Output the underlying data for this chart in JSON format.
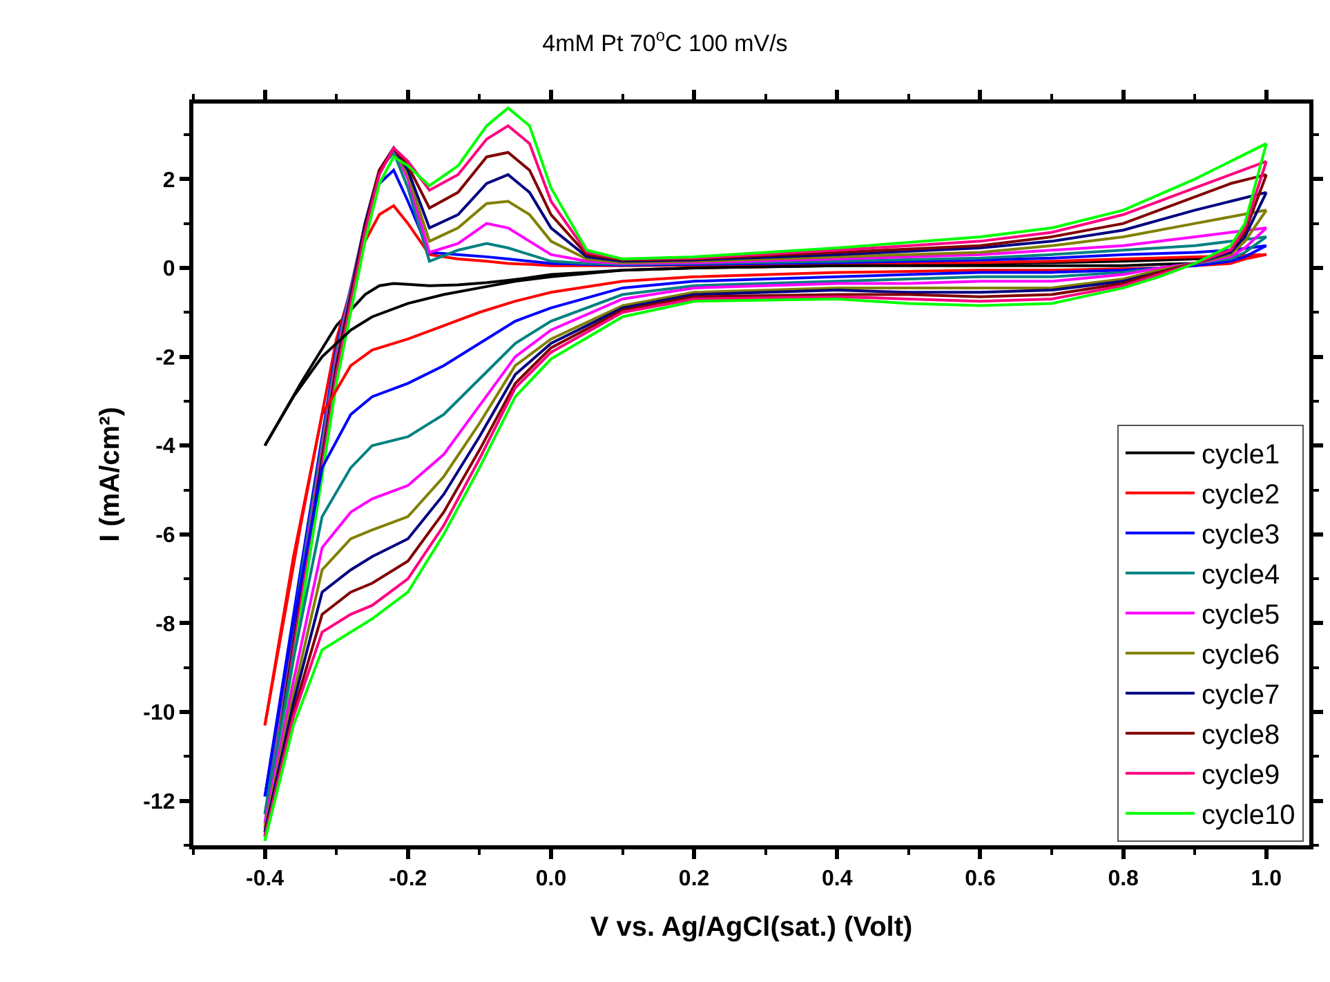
{
  "chart_data": {
    "type": "line",
    "title": "4mM Pt 70$^{o}$C 100 mV/s",
    "xlabel": "V vs. Ag/AgCl(sat.) (Volt)",
    "ylabel": "I (mA/cm²)",
    "x": [
      -0.4,
      -0.35,
      -0.3,
      -0.26,
      -0.24,
      -0.22,
      -0.2,
      -0.17,
      -0.13,
      -0.09,
      -0.06,
      -0.03,
      0,
      0.05,
      0.1,
      0.2,
      0.4,
      0.6,
      0.7,
      0.8,
      0.9,
      0.95,
      1.0
    ],
    "series": [
      {
        "name": "cycle1",
        "color": "#000000",
        "values": [
          -4.0,
          -2.6,
          -1.3,
          -0.6,
          -0.4,
          -0.35,
          -0.37,
          -0.4,
          -0.38,
          -0.33,
          -0.28,
          -0.22,
          -0.15,
          -0.1,
          -0.05,
          0,
          0.05,
          0.1,
          0.12,
          0.15,
          0.2,
          0.25,
          0.3
        ]
      },
      {
        "name": "cycle2",
        "color": "#ff0000",
        "values": [
          -10.3,
          -5.8,
          -1.6,
          0.6,
          1.2,
          1.4,
          1.0,
          0.3,
          0.2,
          0.15,
          0.1,
          0.08,
          0.05,
          0.05,
          0.05,
          0.06,
          0.1,
          0.12,
          0.15,
          0.2,
          0.25,
          0.27,
          0.3
        ]
      },
      {
        "name": "cycle3",
        "color": "#0000ff",
        "values": [
          -11.9,
          -6.8,
          -1.8,
          0.9,
          1.9,
          2.2,
          1.5,
          0.35,
          0.3,
          0.25,
          0.2,
          0.15,
          0.1,
          0.08,
          0.06,
          0.08,
          0.12,
          0.18,
          0.22,
          0.3,
          0.35,
          0.4,
          0.5
        ]
      },
      {
        "name": "cycle4",
        "color": "#008080",
        "values": [
          -12.3,
          -7.0,
          -1.9,
          1.0,
          2.2,
          2.6,
          1.8,
          0.15,
          0.4,
          0.55,
          0.45,
          0.3,
          0.15,
          0.1,
          0.08,
          0.1,
          0.15,
          0.22,
          0.3,
          0.4,
          0.5,
          0.6,
          0.7
        ]
      },
      {
        "name": "cycle5",
        "color": "#ff00ff",
        "values": [
          -12.5,
          -7.2,
          -2.0,
          1.0,
          2.2,
          2.7,
          2.0,
          0.35,
          0.55,
          1.0,
          0.9,
          0.6,
          0.3,
          0.15,
          0.1,
          0.12,
          0.2,
          0.3,
          0.4,
          0.5,
          0.7,
          0.8,
          0.9
        ]
      },
      {
        "name": "cycle6",
        "color": "#808000",
        "values": [
          -12.6,
          -7.3,
          -2.1,
          1.0,
          2.2,
          2.7,
          2.1,
          0.6,
          0.9,
          1.45,
          1.5,
          1.2,
          0.6,
          0.2,
          0.12,
          0.15,
          0.25,
          0.35,
          0.5,
          0.7,
          1.0,
          1.15,
          1.3
        ]
      },
      {
        "name": "cycle7",
        "color": "#000080",
        "values": [
          -12.7,
          -7.4,
          -2.2,
          1.0,
          2.2,
          2.7,
          2.2,
          0.9,
          1.2,
          1.9,
          2.1,
          1.7,
          0.9,
          0.25,
          0.15,
          0.18,
          0.3,
          0.45,
          0.6,
          0.85,
          1.3,
          1.5,
          1.7
        ]
      },
      {
        "name": "cycle8",
        "color": "#800000",
        "values": [
          -12.8,
          -7.5,
          -2.3,
          0.9,
          2.2,
          2.7,
          2.3,
          1.35,
          1.7,
          2.5,
          2.6,
          2.2,
          1.2,
          0.3,
          0.18,
          0.2,
          0.35,
          0.5,
          0.7,
          1.0,
          1.6,
          1.9,
          2.1
        ]
      },
      {
        "name": "cycle9",
        "color": "#ff0080",
        "values": [
          -12.8,
          -7.6,
          -2.4,
          0.8,
          2.1,
          2.7,
          2.4,
          1.75,
          2.1,
          2.9,
          3.2,
          2.8,
          1.5,
          0.35,
          0.2,
          0.22,
          0.4,
          0.6,
          0.8,
          1.2,
          1.8,
          2.1,
          2.4
        ]
      },
      {
        "name": "cycle10",
        "color": "#00ff00",
        "values": [
          -12.9,
          -7.8,
          -2.6,
          0.6,
          1.9,
          2.5,
          2.3,
          1.85,
          2.3,
          3.2,
          3.6,
          3.2,
          1.8,
          0.4,
          0.2,
          0.25,
          0.45,
          0.7,
          0.9,
          1.3,
          2.0,
          2.4,
          2.8
        ]
      },
      {
        "color": "#000000",
        "x": [
          -0.4,
          -0.36,
          -0.32,
          -0.28,
          -0.25,
          -0.2,
          -0.15,
          -0.1,
          -0.05,
          0,
          0.1,
          0.2,
          0.4,
          0.5,
          0.6,
          0.7,
          0.8,
          0.85,
          0.9,
          0.95,
          0.97
        ],
        "values": [
          -4.0,
          -2.9,
          -2.0,
          -1.4,
          -1.1,
          -0.8,
          -0.6,
          -0.45,
          -0.3,
          -0.2,
          -0.05,
          0,
          0.05,
          0.05,
          0.05,
          0.05,
          0.05,
          0.08,
          0.1,
          0.15,
          0.2
        ]
      },
      {
        "color": "#ff0000",
        "x": [
          -0.4,
          -0.36,
          -0.32,
          -0.28,
          -0.25,
          -0.2,
          -0.15,
          -0.1,
          -0.05,
          0,
          0.1,
          0.2,
          0.4,
          0.5,
          0.6,
          0.7,
          0.8,
          0.85,
          0.9,
          0.95,
          0.97,
          1.0
        ],
        "values": [
          -10.3,
          -6.5,
          -3.3,
          -2.2,
          -1.85,
          -1.6,
          -1.3,
          -1.0,
          -0.75,
          -0.55,
          -0.3,
          -0.2,
          -0.1,
          -0.08,
          -0.05,
          -0.05,
          -0.02,
          0,
          0.05,
          0.1,
          0.2,
          0.3
        ]
      },
      {
        "color": "#0000ff",
        "x": [
          -0.4,
          -0.36,
          -0.32,
          -0.28,
          -0.25,
          -0.2,
          -0.15,
          -0.1,
          -0.05,
          0,
          0.1,
          0.2,
          0.4,
          0.5,
          0.6,
          0.7,
          0.8,
          0.85,
          0.9,
          0.95,
          0.97,
          1.0
        ],
        "values": [
          -11.9,
          -8.0,
          -4.5,
          -3.3,
          -2.9,
          -2.6,
          -2.2,
          -1.7,
          -1.2,
          -0.9,
          -0.45,
          -0.3,
          -0.2,
          -0.15,
          -0.1,
          -0.1,
          -0.05,
          0,
          0.05,
          0.15,
          0.25,
          0.5
        ]
      },
      {
        "color": "#008080",
        "x": [
          -0.4,
          -0.36,
          -0.32,
          -0.28,
          -0.25,
          -0.2,
          -0.15,
          -0.1,
          -0.05,
          0,
          0.1,
          0.2,
          0.4,
          0.5,
          0.6,
          0.7,
          0.8,
          0.85,
          0.9,
          0.95,
          0.97,
          1.0
        ],
        "values": [
          -12.3,
          -8.8,
          -5.6,
          -4.5,
          -4.0,
          -3.8,
          -3.3,
          -2.5,
          -1.7,
          -1.2,
          -0.6,
          -0.4,
          -0.3,
          -0.25,
          -0.2,
          -0.2,
          -0.1,
          0,
          0.1,
          0.2,
          0.35,
          0.7
        ]
      },
      {
        "color": "#ff00ff",
        "x": [
          -0.4,
          -0.36,
          -0.32,
          -0.28,
          -0.25,
          -0.2,
          -0.15,
          -0.1,
          -0.05,
          0,
          0.1,
          0.2,
          0.4,
          0.5,
          0.6,
          0.7,
          0.8,
          0.85,
          0.9,
          0.95,
          0.97,
          1.0
        ],
        "values": [
          -12.5,
          -9.3,
          -6.3,
          -5.5,
          -5.2,
          -4.9,
          -4.2,
          -3.1,
          -2.0,
          -1.4,
          -0.7,
          -0.45,
          -0.35,
          -0.35,
          -0.3,
          -0.3,
          -0.15,
          0,
          0.1,
          0.25,
          0.45,
          0.9
        ]
      },
      {
        "color": "#808000",
        "x": [
          -0.4,
          -0.36,
          -0.32,
          -0.28,
          -0.25,
          -0.2,
          -0.15,
          -0.1,
          -0.05,
          0,
          0.1,
          0.2,
          0.4,
          0.5,
          0.6,
          0.7,
          0.8,
          0.85,
          0.9,
          0.95,
          0.97,
          1.0
        ],
        "values": [
          -12.6,
          -9.6,
          -6.8,
          -6.1,
          -5.9,
          -5.6,
          -4.7,
          -3.5,
          -2.2,
          -1.6,
          -0.85,
          -0.55,
          -0.45,
          -0.45,
          -0.45,
          -0.45,
          -0.25,
          -0.05,
          0.1,
          0.3,
          0.6,
          1.3
        ]
      },
      {
        "color": "#000080",
        "x": [
          -0.4,
          -0.36,
          -0.32,
          -0.28,
          -0.25,
          -0.2,
          -0.15,
          -0.1,
          -0.05,
          0,
          0.1,
          0.2,
          0.4,
          0.5,
          0.6,
          0.7,
          0.8,
          0.85,
          0.9,
          0.95,
          0.97,
          1.0
        ],
        "values": [
          -12.7,
          -9.8,
          -7.3,
          -6.8,
          -6.5,
          -6.1,
          -5.1,
          -3.8,
          -2.4,
          -1.7,
          -0.9,
          -0.6,
          -0.5,
          -0.55,
          -0.55,
          -0.5,
          -0.3,
          -0.1,
          0.1,
          0.35,
          0.7,
          1.7
        ]
      },
      {
        "color": "#800000",
        "x": [
          -0.4,
          -0.36,
          -0.32,
          -0.28,
          -0.25,
          -0.2,
          -0.15,
          -0.1,
          -0.05,
          0,
          0.1,
          0.2,
          0.4,
          0.5,
          0.6,
          0.7,
          0.8,
          0.85,
          0.9,
          0.95,
          0.97,
          1.0
        ],
        "values": [
          -12.8,
          -10.0,
          -7.8,
          -7.3,
          -7.1,
          -6.6,
          -5.5,
          -4.1,
          -2.6,
          -1.8,
          -0.95,
          -0.65,
          -0.6,
          -0.6,
          -0.65,
          -0.6,
          -0.35,
          -0.1,
          0.1,
          0.4,
          0.8,
          2.1
        ]
      },
      {
        "color": "#ff0080",
        "x": [
          -0.4,
          -0.36,
          -0.32,
          -0.28,
          -0.25,
          -0.2,
          -0.15,
          -0.1,
          -0.05,
          0,
          0.1,
          0.2,
          0.4,
          0.5,
          0.6,
          0.7,
          0.8,
          0.85,
          0.9,
          0.95,
          0.97,
          1.0
        ],
        "values": [
          -12.8,
          -10.1,
          -8.2,
          -7.8,
          -7.6,
          -7.0,
          -5.8,
          -4.3,
          -2.7,
          -1.9,
          -1.0,
          -0.7,
          -0.65,
          -0.7,
          -0.75,
          -0.7,
          -0.4,
          -0.15,
          0.1,
          0.4,
          0.9,
          2.4
        ]
      },
      {
        "color": "#00ff00",
        "x": [
          -0.4,
          -0.36,
          -0.32,
          -0.28,
          -0.25,
          -0.2,
          -0.15,
          -0.1,
          -0.05,
          0,
          0.1,
          0.2,
          0.4,
          0.5,
          0.6,
          0.7,
          0.8,
          0.85,
          0.9,
          0.95,
          0.97,
          1.0
        ],
        "values": [
          -12.9,
          -10.3,
          -8.6,
          -8.2,
          -7.9,
          -7.3,
          -6.0,
          -4.5,
          -2.9,
          -2.05,
          -1.1,
          -0.75,
          -0.7,
          -0.8,
          -0.85,
          -0.8,
          -0.45,
          -0.2,
          0.1,
          0.5,
          1.0,
          2.8
        ]
      }
    ],
    "xlim": [
      -0.5,
      1.06
    ],
    "xticks": [
      -0.4,
      -0.2,
      {
        "value": 0,
        "label": "0.0"
      },
      0.2,
      0.4,
      0.6,
      0.8,
      {
        "value": 1,
        "label": "1.0"
      }
    ],
    "ylim": [
      -13,
      3.7
    ],
    "yticks": [
      -12,
      -10,
      -8,
      -6,
      -4,
      -2,
      0,
      2
    ],
    "grid": false,
    "legend": "bottom right",
    "marker": "none",
    "line_style": "solid"
  }
}
